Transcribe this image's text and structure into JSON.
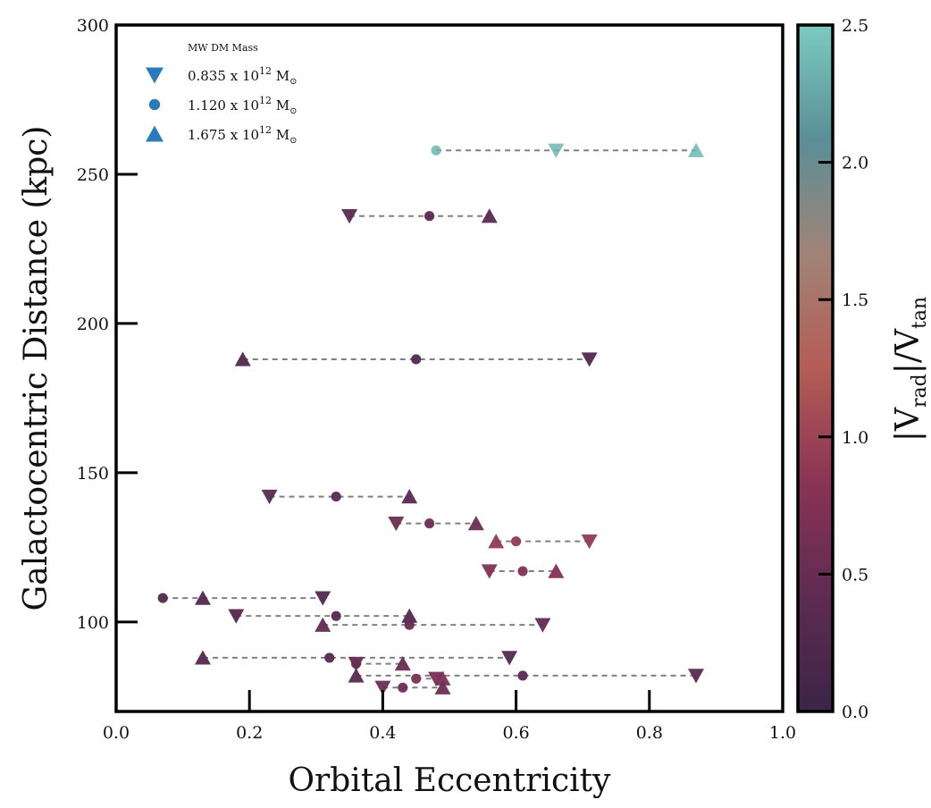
{
  "chart_data": {
    "type": "scatter",
    "xlabel": "Orbital Eccentricity",
    "ylabel": "Galactocentric Distance (kpc)",
    "xlim": [
      0.0,
      1.0
    ],
    "ylim": [
      70,
      300
    ],
    "xticks": [
      "0.0",
      "0.2",
      "0.4",
      "0.6",
      "0.8",
      "1.0"
    ],
    "yticks": [
      "100",
      "150",
      "200",
      "250",
      "300"
    ],
    "grid": false,
    "legend": {
      "title": "MW DM Mass",
      "placement": "top-left",
      "entries": [
        {
          "marker": "triangle-down",
          "label": "0.835 x 10",
          "sup": "12",
          "unit": "M",
          "sub": "⊙"
        },
        {
          "marker": "circle",
          "label": "1.120 x 10",
          "sup": "12",
          "unit": "M",
          "sub": "⊙"
        },
        {
          "marker": "triangle-up",
          "label": "1.675 x 10",
          "sup": "12",
          "unit": "M",
          "sub": "⊙"
        }
      ],
      "color": "#2b7bba"
    },
    "colorbar": {
      "label_main": "|V",
      "label_sub1": "rad",
      "label_mid": "|/V",
      "label_sub2": "tan",
      "range": [
        0.0,
        2.5
      ],
      "ticks": [
        "0.0",
        "0.5",
        "1.0",
        "1.5",
        "2.0",
        "2.5"
      ],
      "colormap": [
        "#3b2546",
        "#5e2b52",
        "#8a3355",
        "#b45d55",
        "#a18378",
        "#5b8e97",
        "#7bcbbf"
      ]
    },
    "satellites": [
      {
        "distance": 258,
        "ratio": 2.35,
        "e_low": 0.66,
        "e_mid": 0.48,
        "e_high": 0.87
      },
      {
        "distance": 236,
        "ratio": 0.35,
        "e_low": 0.35,
        "e_mid": 0.47,
        "e_high": 0.56
      },
      {
        "distance": 188,
        "ratio": 0.25,
        "e_low": 0.71,
        "e_mid": 0.45,
        "e_high": 0.19
      },
      {
        "distance": 142,
        "ratio": 0.35,
        "e_low": 0.23,
        "e_mid": 0.33,
        "e_high": 0.44
      },
      {
        "distance": 133,
        "ratio": 0.55,
        "e_low": 0.42,
        "e_mid": 0.47,
        "e_high": 0.54
      },
      {
        "distance": 127,
        "ratio": 0.9,
        "e_low": 0.71,
        "e_mid": 0.6,
        "e_high": 0.57
      },
      {
        "distance": 117,
        "ratio": 0.75,
        "e_low": 0.56,
        "e_mid": 0.61,
        "e_high": 0.66
      },
      {
        "distance": 108,
        "ratio": 0.25,
        "e_low": 0.31,
        "e_mid": 0.07,
        "e_high": 0.13
      },
      {
        "distance": 102,
        "ratio": 0.3,
        "e_low": 0.18,
        "e_mid": 0.33,
        "e_high": 0.44
      },
      {
        "distance": 99,
        "ratio": 0.45,
        "e_low": 0.64,
        "e_mid": 0.44,
        "e_high": 0.31
      },
      {
        "distance": 88,
        "ratio": 0.3,
        "e_low": 0.59,
        "e_mid": 0.32,
        "e_high": 0.13
      },
      {
        "distance": 86,
        "ratio": 0.5,
        "e_low": 0.36,
        "e_mid": 0.36,
        "e_high": 0.43
      },
      {
        "distance": 82,
        "ratio": 0.35,
        "e_low": 0.87,
        "e_mid": 0.61,
        "e_high": 0.36
      },
      {
        "distance": 81,
        "ratio": 0.7,
        "e_low": 0.48,
        "e_mid": 0.45,
        "e_high": 0.49
      },
      {
        "distance": 78,
        "ratio": 0.55,
        "e_low": 0.4,
        "e_mid": 0.43,
        "e_high": 0.49
      }
    ]
  }
}
